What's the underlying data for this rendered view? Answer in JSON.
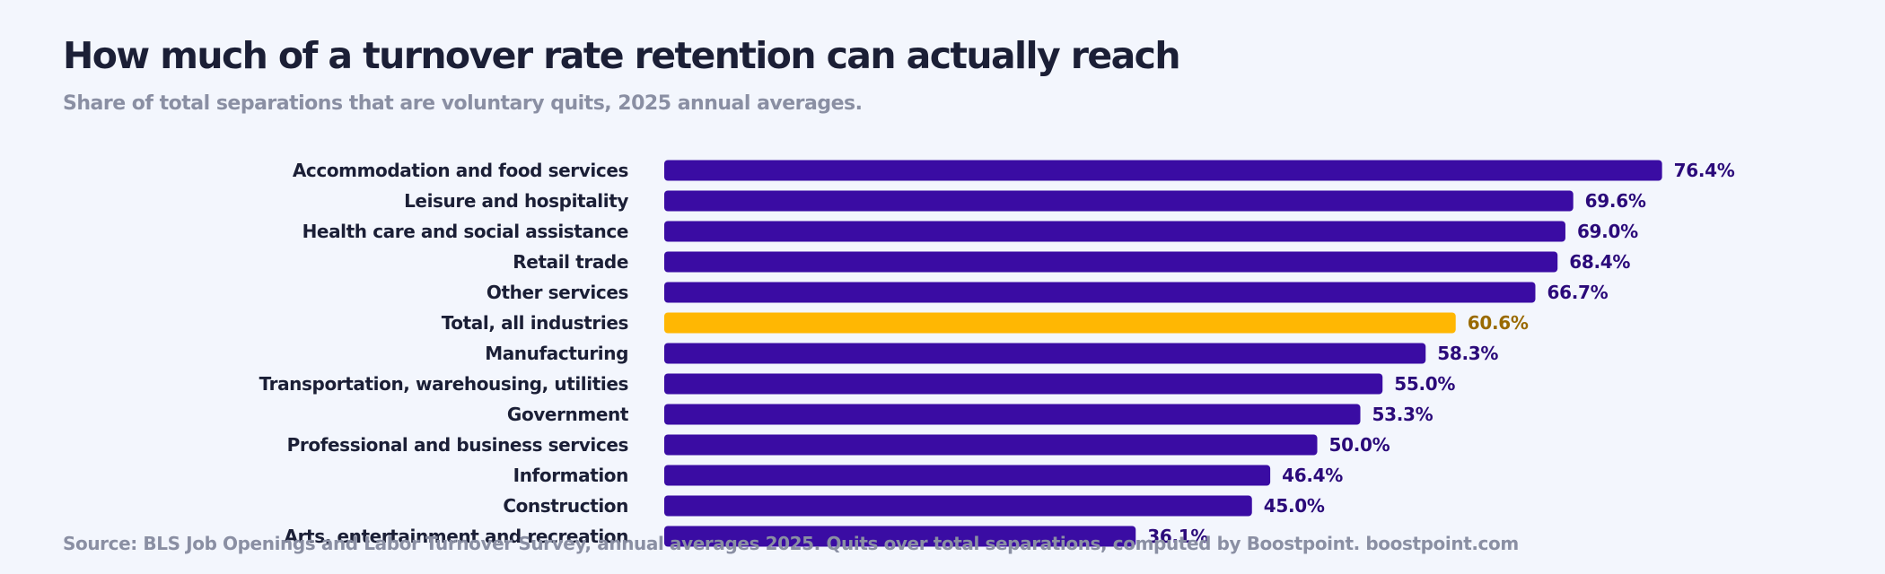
{
  "title": "How much of a turnover rate retention can actually reach",
  "subtitle": "Share of total separations that are voluntary quits, 2025 annual averages.",
  "source": "Source: BLS Job Openings and Labor Turnover Survey, annual averages 2025. Quits over total separations, computed by Boostpoint. boostpoint.com",
  "colors": {
    "bar": "#3a0ca3",
    "highlight_bar": "#ffb703",
    "value_label": "#2b0a7a",
    "highlight_value_label": "#9a6a00"
  },
  "chart_data": {
    "type": "bar",
    "orientation": "horizontal",
    "title": "How much of a turnover rate retention can actually reach",
    "subtitle": "Share of total separations that are voluntary quits, 2025 annual averages.",
    "xlabel": "",
    "ylabel": "",
    "xlim": [
      0,
      100
    ],
    "unit": "%",
    "grid": false,
    "legend": "none",
    "highlight": "Total, all industries",
    "categories": [
      "Accommodation and food services",
      "Leisure and hospitality",
      "Health care and social assistance",
      "Retail trade",
      "Other services",
      "Total, all industries",
      "Manufacturing",
      "Transportation, warehousing, utilities",
      "Government",
      "Professional and business services",
      "Information",
      "Construction",
      "Arts, entertainment and recreation"
    ],
    "values": [
      76.4,
      69.6,
      69.0,
      68.4,
      66.7,
      60.6,
      58.3,
      55.0,
      53.3,
      50.0,
      46.4,
      45.0,
      36.1
    ],
    "value_labels": [
      "76.4%",
      "69.6%",
      "69.0%",
      "68.4%",
      "66.7%",
      "60.6%",
      "58.3%",
      "55.0%",
      "53.3%",
      "50.0%",
      "46.4%",
      "45.0%",
      "36.1%"
    ]
  }
}
